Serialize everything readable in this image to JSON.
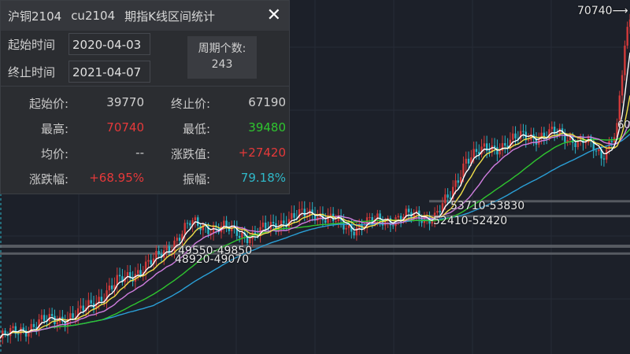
{
  "panel": {
    "title_parts": [
      "沪铜2104",
      "cu2104",
      "期指K线区间统计"
    ],
    "close_icon": "close-icon",
    "start_label": "起始时间",
    "start_value": "2020-04-03",
    "end_label": "终止时间",
    "end_value": "2021-04-07",
    "count_label": "周期个数:",
    "count_value": "243",
    "stats": [
      {
        "label": "起始价:",
        "value": "39770",
        "color": "#d0d0d0"
      },
      {
        "label": "终止价:",
        "value": "67190",
        "color": "#d0d0d0"
      },
      {
        "label": "最高:",
        "value": "70740",
        "color": "#e5393a"
      },
      {
        "label": "最低:",
        "value": "39480",
        "color": "#2fc52f"
      },
      {
        "label": "均价:",
        "value": "--",
        "color": "#d0d0d0"
      },
      {
        "label": "涨跌值:",
        "value": "+27420",
        "color": "#e5393a"
      },
      {
        "label": "涨跌幅:",
        "value": "+68.95%",
        "color": "#e5393a"
      },
      {
        "label": "振幅:",
        "value": "79.18%",
        "color": "#2fb8c8"
      }
    ]
  },
  "chart": {
    "high_marker": "70740⟶",
    "right_edge_label": "60",
    "zones": [
      {
        "label": "53710-53830",
        "price": 53770
      },
      {
        "label": "52410-52420",
        "price": 52415
      },
      {
        "label": "49550-49850",
        "price": 49700
      },
      {
        "label": "48920-49070",
        "price": 48995
      }
    ],
    "price_path": [
      [
        0,
        41300
      ],
      [
        15,
        42700
      ],
      [
        30,
        43450
      ],
      [
        45,
        46330
      ],
      [
        60,
        48480
      ],
      [
        73,
        51710
      ],
      [
        85,
        51350
      ],
      [
        97,
        50630
      ],
      [
        109,
        52070
      ],
      [
        121,
        52790
      ],
      [
        134,
        51350
      ],
      [
        146,
        52070
      ],
      [
        158,
        52430
      ],
      [
        167,
        52430
      ],
      [
        173,
        54220
      ],
      [
        179,
        57810
      ],
      [
        188,
        58530
      ],
      [
        200,
        59610
      ],
      [
        213,
        59970
      ],
      [
        225,
        59250
      ],
      [
        231,
        57810
      ],
      [
        237,
        60690
      ],
      [
        240,
        67860
      ],
      [
        242,
        70020
      ]
    ],
    "colors": {
      "up": "#d23a3a",
      "down": "#2bb5c8",
      "ma5": "#ffffff",
      "ma10": "#f2e14a",
      "ma20": "#d07ee0",
      "ma40": "#2fc52f",
      "ma60": "#2a9fd6"
    }
  }
}
